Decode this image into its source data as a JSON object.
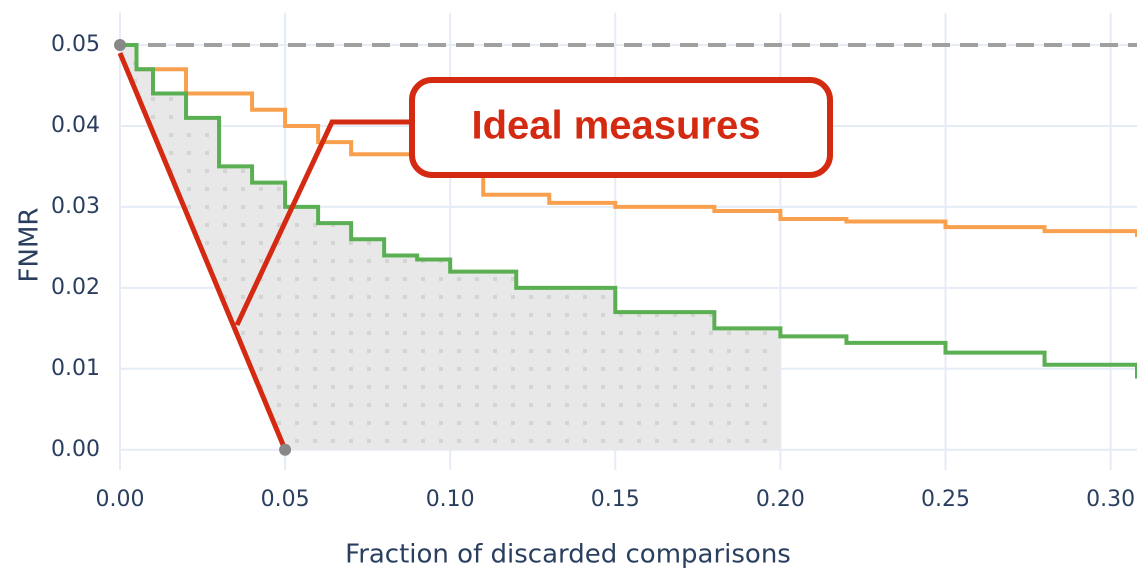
{
  "chart_data": {
    "type": "line",
    "shape": "step",
    "x_label": "Fraction of discarded comparisons",
    "y_label": "FNMR",
    "annotation": "Ideal measures",
    "xlim": [
      0,
      0.308
    ],
    "ylim": [
      -0.0025,
      0.054
    ],
    "xticks": [
      {
        "value": 0,
        "label": "0.00"
      },
      0.05,
      {
        "value": 0.1,
        "label": "0.10"
      },
      0.15,
      {
        "value": 0.2,
        "label": "0.20"
      },
      0.25,
      {
        "value": 0.3,
        "label": "0.30"
      }
    ],
    "yticks": [
      {
        "value": 0,
        "label": "0.00"
      },
      0.01,
      0.02,
      0.03,
      0.04,
      0.05
    ],
    "grid": true,
    "reference_line": {
      "value": 0.05,
      "color": "#a0a0a0"
    },
    "ideal_line": {
      "x": [
        0,
        0.05
      ],
      "values": [
        0.049,
        0
      ],
      "color": "#d42a12"
    },
    "shaded_region": {
      "x": [
        0,
        0.2
      ],
      "color": "#e8e8e8"
    },
    "series": [
      {
        "color": "#f9a04f",
        "x": [
          0,
          0.005,
          0.02,
          0.04,
          0.05,
          0.06,
          0.07,
          0.09,
          0.1,
          0.11,
          0.13,
          0.15,
          0.18,
          0.2,
          0.22,
          0.25,
          0.28,
          0.308
        ],
        "values": [
          0.05,
          0.047,
          0.044,
          0.042,
          0.04,
          0.038,
          0.0365,
          0.035,
          0.034,
          0.0315,
          0.0305,
          0.03,
          0.0295,
          0.0285,
          0.0282,
          0.0275,
          0.027,
          0.0263
        ]
      },
      {
        "color": "#5aaf52",
        "x": [
          0,
          0.005,
          0.01,
          0.02,
          0.03,
          0.04,
          0.05,
          0.06,
          0.07,
          0.08,
          0.09,
          0.1,
          0.12,
          0.15,
          0.18,
          0.2,
          0.22,
          0.25,
          0.28,
          0.308
        ],
        "values": [
          0.05,
          0.047,
          0.044,
          0.041,
          0.035,
          0.033,
          0.03,
          0.028,
          0.026,
          0.024,
          0.0235,
          0.022,
          0.02,
          0.017,
          0.015,
          0.014,
          0.0132,
          0.012,
          0.0105,
          0.0088
        ]
      }
    ]
  }
}
